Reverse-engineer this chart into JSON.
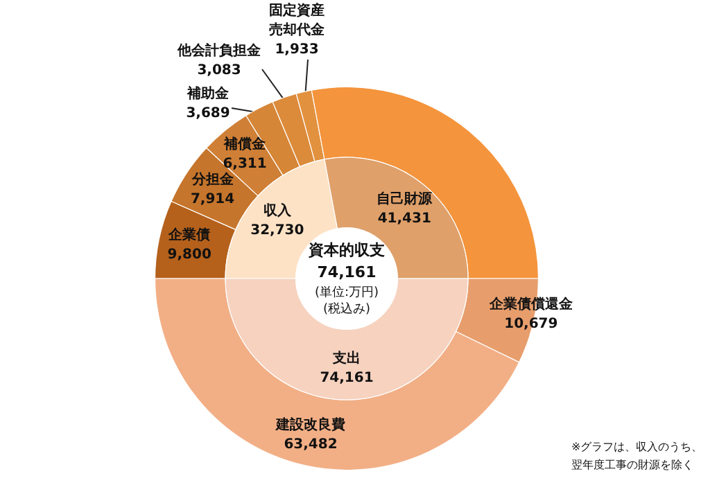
{
  "chart_data": [
    {
      "type": "donut",
      "title": "資本的収支",
      "annotations": [
        "74,161",
        "(単位:万円)",
        "(税込み)"
      ],
      "categories": [
        "収入",
        "自己財源",
        "支出"
      ],
      "values": [
        32730,
        41431,
        74161
      ],
      "value_labels": [
        "32,730",
        "41,431",
        "74,161"
      ],
      "colors": [
        "#fde2c6",
        "#dfa06a",
        "#f6d2bf"
      ]
    },
    {
      "type": "donut",
      "annotations": [
        "※グラフは、収入のうち、翌年度工事の財源を除く"
      ],
      "categories": [
        "企業債",
        "分担金",
        "補償金",
        "補助金",
        "他会計負担金",
        "固定資産売却代金",
        null,
        "企業債償還金",
        "建設改良費"
      ],
      "values": [
        9800,
        7914,
        6311,
        3689,
        3083,
        1933,
        41431,
        10679,
        63482
      ],
      "value_labels": [
        "9,800",
        "7,914",
        "6,311",
        "3,689",
        "3,083",
        "1,933",
        null,
        "10,679",
        "63,482"
      ],
      "colors": [
        "#b5611c",
        "#c6752c",
        "#cf7f36",
        "#d68637",
        "#dc8b3a",
        "#e2913f",
        "#f4943c",
        "#e79e6c",
        "#f2af86"
      ]
    }
  ]
}
